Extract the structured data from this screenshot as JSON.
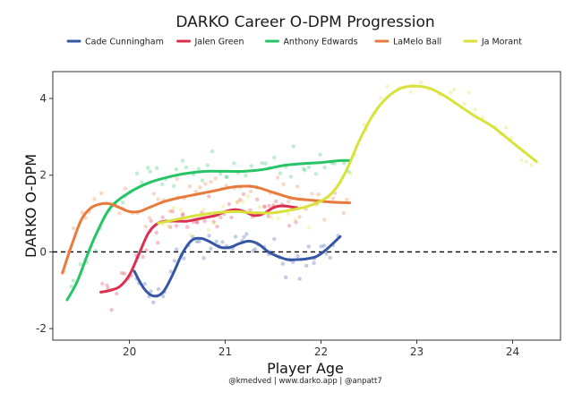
{
  "chart_data": {
    "type": "line",
    "title": "DARKO Career O-DPM Progression",
    "xlabel": "Player Age",
    "ylabel": "DARKO O-DPM",
    "caption": "@kmedved | www.darko.app | @anpatt7",
    "xlim": [
      19.2,
      24.5
    ],
    "ylim": [
      -2.3,
      4.7
    ],
    "xticks": [
      20,
      21,
      22,
      23,
      24
    ],
    "yticks": [
      -2,
      0,
      2,
      4
    ],
    "reference_line": 0,
    "grid": false,
    "legend_position": "top",
    "series": [
      {
        "name": "Cade Cunningham",
        "color": "#3456a4",
        "x": [
          20.05,
          20.15,
          20.25,
          20.35,
          20.45,
          20.55,
          20.65,
          20.75,
          20.85,
          20.95,
          21.05,
          21.15,
          21.25,
          21.35,
          21.45,
          21.55,
          21.65,
          21.75,
          21.85,
          21.95,
          22.05,
          22.2
        ],
        "y": [
          -0.5,
          -0.95,
          -1.15,
          -1.05,
          -0.6,
          -0.05,
          0.3,
          0.35,
          0.25,
          0.12,
          0.12,
          0.22,
          0.28,
          0.2,
          0.0,
          -0.12,
          -0.2,
          -0.2,
          -0.18,
          -0.12,
          0.05,
          0.4
        ]
      },
      {
        "name": "Jalen Green",
        "color": "#dc2f4f",
        "x": [
          19.7,
          19.8,
          19.9,
          20.0,
          20.1,
          20.2,
          20.3,
          20.4,
          20.5,
          20.6,
          20.7,
          20.8,
          20.9,
          21.0,
          21.1,
          21.2,
          21.3,
          21.4,
          21.5,
          21.6,
          21.75
        ],
        "y": [
          -1.05,
          -1.0,
          -0.9,
          -0.6,
          -0.05,
          0.5,
          0.75,
          0.8,
          0.8,
          0.8,
          0.85,
          0.9,
          0.95,
          1.05,
          1.1,
          1.05,
          0.95,
          1.0,
          1.15,
          1.2,
          1.15
        ]
      },
      {
        "name": "Anthony Edwards",
        "color": "#27c465",
        "x": [
          19.35,
          19.45,
          19.55,
          19.65,
          19.8,
          20.0,
          20.2,
          20.4,
          20.6,
          20.8,
          21.0,
          21.2,
          21.4,
          21.6,
          21.8,
          22.0,
          22.2,
          22.3
        ],
        "y": [
          -1.25,
          -0.8,
          -0.15,
          0.45,
          1.15,
          1.55,
          1.8,
          1.95,
          2.05,
          2.1,
          2.1,
          2.1,
          2.15,
          2.25,
          2.3,
          2.33,
          2.38,
          2.38
        ]
      },
      {
        "name": "LaMelo Ball",
        "color": "#e87a3c",
        "x": [
          19.3,
          19.4,
          19.5,
          19.6,
          19.7,
          19.8,
          19.9,
          20.0,
          20.1,
          20.2,
          20.35,
          20.5,
          20.7,
          20.9,
          21.1,
          21.3,
          21.5,
          21.7,
          21.9,
          22.1,
          22.3
        ],
        "y": [
          -0.55,
          0.2,
          0.85,
          1.15,
          1.25,
          1.25,
          1.15,
          1.05,
          1.05,
          1.15,
          1.3,
          1.4,
          1.5,
          1.6,
          1.7,
          1.7,
          1.55,
          1.4,
          1.35,
          1.3,
          1.28
        ]
      },
      {
        "name": "Ja Morant",
        "color": "#d8e23b",
        "x": [
          20.3,
          20.5,
          20.7,
          20.9,
          21.1,
          21.3,
          21.5,
          21.7,
          21.9,
          22.1,
          22.25,
          22.4,
          22.55,
          22.7,
          22.85,
          23.0,
          23.15,
          23.3,
          23.45,
          23.6,
          23.8,
          24.0,
          24.25
        ],
        "y": [
          0.75,
          0.85,
          0.95,
          1.02,
          1.05,
          1.02,
          1.02,
          1.1,
          1.22,
          1.5,
          2.05,
          2.9,
          3.6,
          4.05,
          4.28,
          4.32,
          4.25,
          4.05,
          3.8,
          3.55,
          3.25,
          2.85,
          2.35
        ]
      }
    ]
  }
}
